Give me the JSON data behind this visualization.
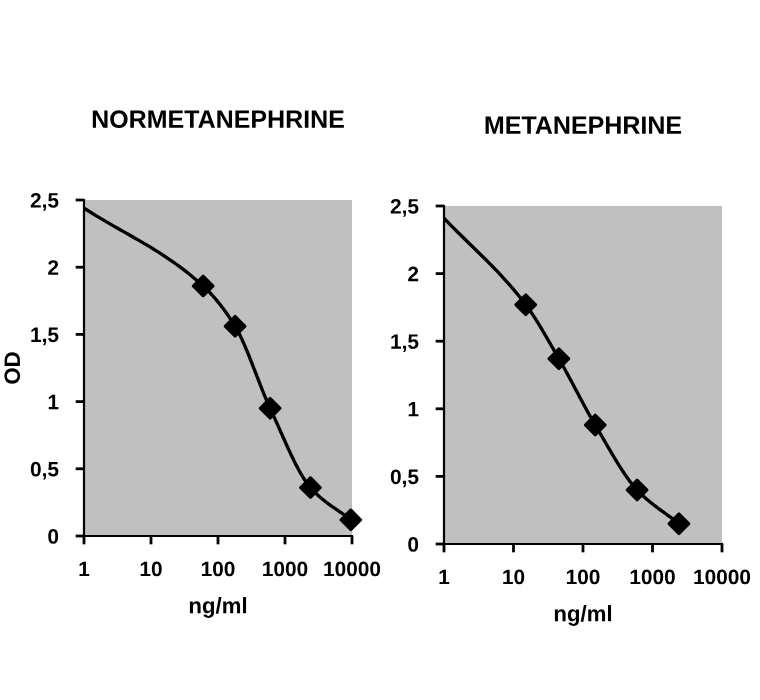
{
  "chart_data": [
    {
      "type": "line",
      "title": "NORMETANEPHRINE",
      "xlabel": "ng/ml",
      "ylabel": "OD",
      "log": "x",
      "xlim": [
        1,
        10000
      ],
      "ylim": [
        0,
        2.5
      ],
      "xticks": [
        1,
        10,
        100,
        1000,
        10000
      ],
      "yticks": [
        {
          "value": 0,
          "label": "0"
        },
        {
          "value": 0.5,
          "label": "0,5"
        },
        {
          "value": 1,
          "label": "1"
        },
        {
          "value": 1.5,
          "label": "1,5"
        },
        {
          "value": 2,
          "label": "2"
        },
        {
          "value": 2.5,
          "label": "2,5"
        }
      ],
      "series": [
        {
          "color": "#000000",
          "line_style": "solid",
          "x": [
            1,
            60,
            180,
            600,
            2400,
            9600
          ],
          "values": [
            2.44,
            1.86,
            1.56,
            0.95,
            0.36,
            0.12
          ]
        },
        {
          "type": "scatter",
          "color": "#000000",
          "marker": "diamond",
          "x": [
            60,
            180,
            600,
            2400,
            9600
          ],
          "values": [
            1.86,
            1.56,
            0.95,
            0.36,
            0.12
          ]
        }
      ]
    },
    {
      "type": "line",
      "title": "METANEPHRINE",
      "xlabel": "ng/ml",
      "log": "x",
      "xlim": [
        1,
        10000
      ],
      "ylim": [
        0,
        2.5
      ],
      "xticks": [
        1,
        10,
        100,
        1000,
        10000
      ],
      "yticks": [
        {
          "value": 0,
          "label": "0"
        },
        {
          "value": 0.5,
          "label": "0,5"
        },
        {
          "value": 1,
          "label": "1"
        },
        {
          "value": 1.5,
          "label": "1,5"
        },
        {
          "value": 2,
          "label": "2"
        },
        {
          "value": 2.5,
          "label": "2,5"
        }
      ],
      "series": [
        {
          "color": "#000000",
          "line_style": "solid",
          "x": [
            1,
            15,
            45,
            150,
            600,
            2400
          ],
          "values": [
            2.41,
            1.77,
            1.37,
            0.88,
            0.4,
            0.15
          ]
        },
        {
          "type": "scatter",
          "color": "#000000",
          "marker": "diamond",
          "x": [
            15,
            45,
            150,
            600,
            2400
          ],
          "values": [
            1.77,
            1.37,
            0.88,
            0.4,
            0.15
          ]
        }
      ]
    }
  ]
}
